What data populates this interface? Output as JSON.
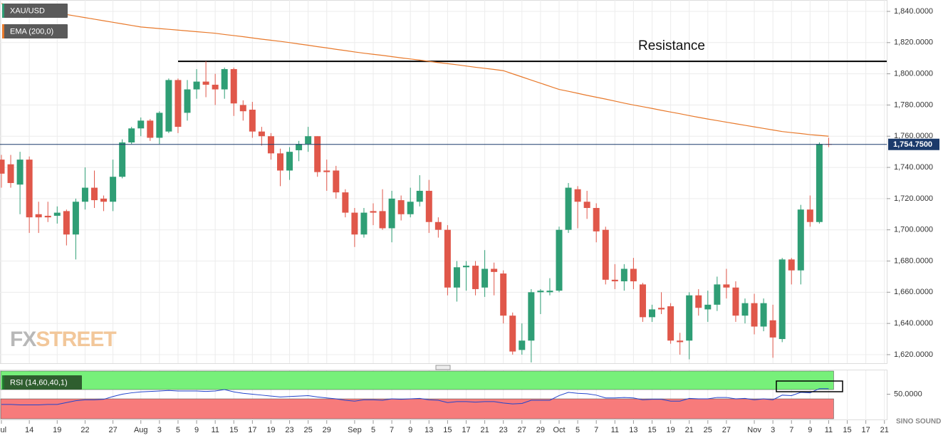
{
  "chart_data": [
    {
      "type": "candlestick",
      "name": "XAU/USD",
      "up_color": "#2f9e75",
      "down_color": "#e0574a",
      "categories": [
        "Jul",
        null,
        null,
        "14",
        null,
        null,
        "19",
        null,
        null,
        "22",
        null,
        null,
        "27",
        null,
        null,
        "Aug",
        null,
        "3",
        null,
        "5",
        null,
        "9",
        null,
        "11",
        null,
        "15",
        null,
        "17",
        null,
        "19",
        null,
        "23",
        null,
        "25",
        null,
        "29",
        null,
        null,
        "Sep",
        null,
        "5",
        null,
        "7",
        null,
        "9",
        null,
        "13",
        null,
        "15",
        null,
        "17",
        null,
        "21",
        null,
        "23",
        null,
        "27",
        null,
        "29",
        null,
        "Oct",
        null,
        "5",
        null,
        "7",
        null,
        "11",
        null,
        "13",
        null,
        "15",
        null,
        "19",
        null,
        "21",
        null,
        "25",
        null,
        "27",
        null,
        null,
        "Nov",
        null,
        "3",
        null,
        "7",
        null,
        "9",
        null,
        "11",
        null,
        "15",
        null,
        "17",
        null,
        "21"
      ],
      "open": [
        1745,
        1742,
        1729,
        1745,
        1710,
        1709,
        1709,
        1712,
        1697,
        1718,
        1727,
        1720,
        1718,
        1734,
        1756,
        1765,
        1770,
        1759,
        1763,
        1796,
        1775,
        1790,
        1795,
        1793,
        1790,
        1803,
        1780,
        1777,
        1763,
        1760,
        1749,
        1738,
        1751,
        1755,
        1760,
        1738,
        1738,
        1724,
        1711,
        1697,
        1712,
        1712,
        1701,
        1719,
        1710,
        1718,
        1725,
        1705,
        1700,
        1663,
        1676,
        1677,
        1663,
        1675,
        1672,
        1645,
        1623,
        1629,
        1660,
        1660,
        1661,
        1700,
        1726,
        1718,
        1714,
        1700,
        1668,
        1667,
        1675,
        1665,
        1644,
        1650,
        1651,
        1629,
        1629,
        1658,
        1649,
        1652,
        1665,
        1663,
        1645,
        1653,
        1638,
        1642,
        1630,
        1681,
        1674,
        1713,
        1705,
        1755,
        null,
        null,
        null,
        null,
        null,
        null
      ],
      "high": [
        1748,
        1748,
        1750,
        1747,
        1718,
        1718,
        1715,
        1713,
        1720,
        1740,
        1738,
        1722,
        1745,
        1758,
        1766,
        1772,
        1771,
        1776,
        1797,
        1797,
        1796,
        1803,
        1808,
        1800,
        1804,
        1804,
        1783,
        1782,
        1766,
        1762,
        1752,
        1753,
        1757,
        1766,
        1760,
        1745,
        1741,
        1726,
        1714,
        1714,
        1717,
        1726,
        1725,
        1722,
        1727,
        1735,
        1732,
        1708,
        1703,
        1680,
        1680,
        1680,
        1687,
        1679,
        1674,
        1647,
        1640,
        1662,
        1662,
        1669,
        1702,
        1730,
        1728,
        1725,
        1717,
        1702,
        1678,
        1678,
        1682,
        1666,
        1652,
        1660,
        1653,
        1634,
        1660,
        1662,
        1661,
        1670,
        1675,
        1667,
        1656,
        1659,
        1656,
        1652,
        1682,
        1682,
        1716,
        1722,
        1756,
        1759,
        null,
        null,
        null,
        null,
        null,
        null
      ],
      "low": [
        1727,
        1727,
        1710,
        1698,
        1698,
        1705,
        1704,
        1690,
        1681,
        1713,
        1714,
        1712,
        1712,
        1733,
        1755,
        1760,
        1757,
        1755,
        1762,
        1762,
        1770,
        1784,
        1785,
        1780,
        1784,
        1773,
        1770,
        1759,
        1754,
        1745,
        1728,
        1732,
        1744,
        1750,
        1734,
        1725,
        1720,
        1708,
        1689,
        1695,
        1703,
        1700,
        1692,
        1706,
        1708,
        1715,
        1698,
        1695,
        1658,
        1654,
        1661,
        1658,
        1657,
        1658,
        1640,
        1620,
        1620,
        1615,
        1646,
        1658,
        1660,
        1698,
        1701,
        1707,
        1692,
        1665,
        1662,
        1661,
        1662,
        1641,
        1641,
        1646,
        1627,
        1620,
        1617,
        1645,
        1641,
        1648,
        1656,
        1641,
        1640,
        1633,
        1635,
        1618,
        1628,
        1665,
        1665,
        1702,
        1704,
        1753,
        null,
        null,
        null,
        null,
        null,
        null
      ],
      "close": [
        1736,
        1730,
        1745,
        1708,
        1708,
        1708,
        1711,
        1697,
        1718,
        1727,
        1719,
        1718,
        1734,
        1756,
        1765,
        1770,
        1759,
        1775,
        1796,
        1766,
        1790,
        1795,
        1793,
        1790,
        1803,
        1781,
        1776,
        1763,
        1760,
        1749,
        1738,
        1750,
        1755,
        1760,
        1737,
        1737,
        1724,
        1711,
        1697,
        1711,
        1711,
        1701,
        1720,
        1710,
        1718,
        1725,
        1705,
        1700,
        1663,
        1676,
        1677,
        1662,
        1675,
        1673,
        1645,
        1622,
        1629,
        1660,
        1661,
        1661,
        1700,
        1727,
        1718,
        1714,
        1699,
        1668,
        1667,
        1675,
        1667,
        1644,
        1649,
        1649,
        1629,
        1628,
        1658,
        1650,
        1652,
        1665,
        1663,
        1645,
        1653,
        1638,
        1653,
        1631,
        1681,
        1674,
        1713,
        1705,
        1755,
        1754.75,
        null,
        null,
        null,
        null,
        null,
        null
      ],
      "ema": {
        "name": "EMA (200,0)",
        "color": "#e8792b",
        "values": [
          1845,
          1844,
          1843,
          1842,
          1841,
          1840,
          1839,
          1838,
          1837,
          1836,
          1835,
          1834,
          1833,
          1832,
          1831,
          1830,
          1829.5,
          1829,
          1828.5,
          1828,
          1827.5,
          1827,
          1826.5,
          1826,
          1825.2,
          1824.5,
          1823.8,
          1823,
          1822.2,
          1821.5,
          1820.8,
          1820,
          1819.1,
          1818.3,
          1817.4,
          1816.6,
          1815.7,
          1814.9,
          1814,
          1813.2,
          1812.5,
          1811.8,
          1811,
          1810.2,
          1809.5,
          1808.8,
          1808,
          1807.2,
          1806.5,
          1805.8,
          1805,
          1804.2,
          1803.5,
          1802.8,
          1802,
          1800,
          1798,
          1796,
          1794,
          1792,
          1790,
          1788.8,
          1787.5,
          1786.2,
          1785,
          1783.8,
          1782.5,
          1781.2,
          1780,
          1778.9,
          1777.8,
          1776.6,
          1775.5,
          1774.4,
          1773.2,
          1772.1,
          1771,
          1770,
          1769,
          1768,
          1767,
          1766,
          1765,
          1764,
          1763,
          1762.3,
          1761.7,
          1761,
          1760.5,
          1760,
          null,
          null,
          null,
          null,
          null,
          null
        ]
      },
      "resistance": {
        "label": "Resistance",
        "value": 1808
      },
      "last_price": {
        "value": 1754.75,
        "label": "1,754.7500",
        "color": "#1b3a6b"
      },
      "ylim": [
        1614.5,
        1847.3
      ],
      "yticks": [
        {
          "value": 1620,
          "label": "1,620.0000"
        },
        {
          "value": 1640,
          "label": "1,640.0000"
        },
        {
          "value": 1660,
          "label": "1,660.0000"
        },
        {
          "value": 1680,
          "label": "1,680.0000"
        },
        {
          "value": 1700,
          "label": "1,700.0000"
        },
        {
          "value": 1720,
          "label": "1,720.0000"
        },
        {
          "value": 1740,
          "label": "1,740.0000"
        },
        {
          "value": 1760,
          "label": "1,760.0000"
        },
        {
          "value": 1780,
          "label": "1,780.0000"
        },
        {
          "value": 1800,
          "label": "1,800.0000"
        },
        {
          "value": 1820,
          "label": "1,820.0000"
        },
        {
          "value": 1840,
          "label": "1,840.0000"
        }
      ],
      "grid": true,
      "watermark": [
        "FX",
        "STREET"
      ],
      "logo": "SINO SOUND"
    },
    {
      "type": "line",
      "name": "RSI (14,60,40,1)",
      "color": "#2244cc",
      "levels": [
        40,
        60
      ],
      "zone_colors": [
        "#f77b7b",
        "#77f07a"
      ],
      "values": [
        28,
        28,
        27,
        27,
        27,
        28,
        28,
        32,
        36,
        38,
        38,
        39,
        45,
        50,
        53,
        55,
        56,
        57,
        58,
        57,
        57,
        57,
        56,
        57,
        60,
        55,
        52,
        50,
        48,
        46,
        44,
        45,
        46,
        47,
        44,
        42,
        40,
        37,
        35,
        38,
        38,
        37,
        40,
        39,
        40,
        41,
        38,
        37,
        32,
        34,
        34,
        33,
        34,
        34,
        31,
        29,
        30,
        37,
        37,
        37,
        47,
        54,
        52,
        51,
        48,
        42,
        42,
        43,
        42,
        38,
        39,
        39,
        35,
        35,
        41,
        40,
        40,
        43,
        43,
        40,
        41,
        38,
        40,
        38,
        48,
        47,
        54,
        53,
        62,
        62,
        null,
        null,
        null,
        null,
        null,
        null
      ],
      "ylim": [
        -3,
        101.5
      ],
      "yticks": [
        {
          "value": 50,
          "label": "50.0000"
        }
      ]
    }
  ]
}
